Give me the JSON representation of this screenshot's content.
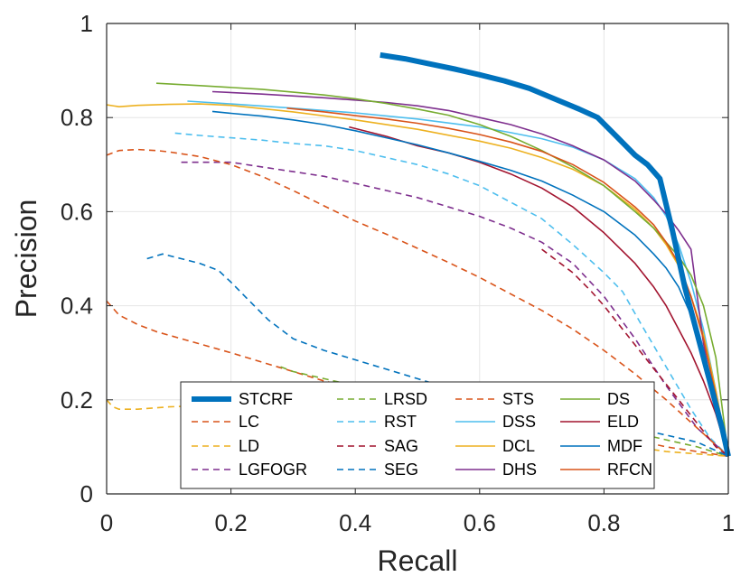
{
  "chart_data": {
    "type": "line",
    "title": "",
    "xlabel": "Recall",
    "ylabel": "Precision",
    "xlim": [
      0,
      1
    ],
    "ylim": [
      0,
      1
    ],
    "xticks": [
      "0",
      "0.2",
      "0.4",
      "0.6",
      "0.8",
      "1"
    ],
    "yticks": [
      "0",
      "0.2",
      "0.4",
      "0.6",
      "0.8",
      "1"
    ],
    "grid": true,
    "legend_position": "bottom",
    "series": [
      {
        "name": "STCRF",
        "color": "#0072BD",
        "style": "thick",
        "x": [
          0.44,
          0.48,
          0.52,
          0.56,
          0.6,
          0.64,
          0.68,
          0.72,
          0.76,
          0.79,
          0.82,
          0.85,
          0.87,
          0.89,
          0.91,
          0.93,
          0.95,
          0.97,
          0.99,
          1.0
        ],
        "y": [
          0.933,
          0.925,
          0.914,
          0.903,
          0.891,
          0.878,
          0.862,
          0.84,
          0.818,
          0.8,
          0.76,
          0.72,
          0.7,
          0.67,
          0.56,
          0.44,
          0.34,
          0.24,
          0.14,
          0.08
        ]
      },
      {
        "name": "LC",
        "color": "#D95319",
        "style": "dashed",
        "x": [
          0.0,
          0.02,
          0.05,
          0.08,
          0.12,
          0.16,
          0.2,
          0.25,
          0.3,
          0.35,
          0.4,
          0.45,
          0.5,
          0.55,
          0.6,
          0.65,
          0.7,
          0.75,
          0.8,
          0.85,
          0.9,
          0.95,
          1.0
        ],
        "y": [
          0.41,
          0.38,
          0.36,
          0.345,
          0.33,
          0.315,
          0.3,
          0.28,
          0.26,
          0.24,
          0.225,
          0.21,
          0.195,
          0.18,
          0.17,
          0.16,
          0.15,
          0.14,
          0.125,
          0.115,
          0.1,
          0.09,
          0.08
        ]
      },
      {
        "name": "LD",
        "color": "#EDB120",
        "style": "dashed",
        "x": [
          0.0,
          0.01,
          0.02,
          0.05,
          0.1,
          0.2,
          0.3,
          0.4,
          0.5,
          0.6,
          0.7,
          0.8,
          0.9,
          1.0
        ],
        "y": [
          0.2,
          0.185,
          0.18,
          0.18,
          0.185,
          0.19,
          0.185,
          0.175,
          0.165,
          0.15,
          0.13,
          0.11,
          0.09,
          0.08
        ]
      },
      {
        "name": "LGFOGR",
        "color": "#7E2F8E",
        "style": "dashed",
        "x": [
          0.12,
          0.15,
          0.2,
          0.25,
          0.3,
          0.35,
          0.4,
          0.45,
          0.5,
          0.55,
          0.6,
          0.65,
          0.7,
          0.75,
          0.8,
          0.85,
          0.9,
          0.95,
          1.0
        ],
        "y": [
          0.705,
          0.705,
          0.705,
          0.695,
          0.685,
          0.675,
          0.66,
          0.645,
          0.63,
          0.61,
          0.59,
          0.565,
          0.535,
          0.49,
          0.42,
          0.33,
          0.23,
          0.14,
          0.08
        ]
      },
      {
        "name": "LRSD",
        "color": "#77AC30",
        "style": "dashed",
        "x": [
          0.28,
          0.3,
          0.35,
          0.4,
          0.45,
          0.5,
          0.55,
          0.6,
          0.65,
          0.7,
          0.75,
          0.8,
          0.85,
          0.9,
          0.95,
          1.0
        ],
        "y": [
          0.27,
          0.26,
          0.245,
          0.23,
          0.215,
          0.205,
          0.195,
          0.185,
          0.175,
          0.165,
          0.155,
          0.145,
          0.13,
          0.115,
          0.1,
          0.08
        ]
      },
      {
        "name": "RST",
        "color": "#4DBEEE",
        "style": "dashed",
        "x": [
          0.11,
          0.15,
          0.2,
          0.25,
          0.3,
          0.35,
          0.4,
          0.45,
          0.5,
          0.55,
          0.6,
          0.65,
          0.7,
          0.75,
          0.8,
          0.83,
          0.86,
          0.9,
          0.94,
          0.97,
          1.0
        ],
        "y": [
          0.767,
          0.762,
          0.757,
          0.752,
          0.745,
          0.74,
          0.73,
          0.715,
          0.7,
          0.68,
          0.655,
          0.62,
          0.585,
          0.53,
          0.47,
          0.43,
          0.36,
          0.27,
          0.18,
          0.12,
          0.08
        ]
      },
      {
        "name": "SAG",
        "color": "#A2142F",
        "style": "dashed",
        "x": [
          0.7,
          0.72,
          0.75,
          0.78,
          0.8,
          0.83,
          0.86,
          0.89,
          0.92,
          0.95,
          0.98,
          1.0
        ],
        "y": [
          0.52,
          0.5,
          0.47,
          0.43,
          0.4,
          0.35,
          0.3,
          0.25,
          0.2,
          0.15,
          0.1,
          0.08
        ]
      },
      {
        "name": "SEG",
        "color": "#0072BD",
        "style": "dashed",
        "x": [
          0.065,
          0.09,
          0.12,
          0.15,
          0.18,
          0.2,
          0.23,
          0.26,
          0.3,
          0.35,
          0.4,
          0.45,
          0.5,
          0.55,
          0.6,
          0.65,
          0.7,
          0.75,
          0.8,
          0.85,
          0.9,
          0.95,
          1.0
        ],
        "y": [
          0.5,
          0.51,
          0.5,
          0.49,
          0.475,
          0.45,
          0.41,
          0.37,
          0.33,
          0.305,
          0.285,
          0.265,
          0.245,
          0.225,
          0.21,
          0.195,
          0.18,
          0.165,
          0.15,
          0.14,
          0.125,
          0.11,
          0.08
        ]
      },
      {
        "name": "STS",
        "color": "#D95319",
        "style": "dashed",
        "x": [
          0.0,
          0.02,
          0.05,
          0.08,
          0.1,
          0.15,
          0.2,
          0.25,
          0.3,
          0.35,
          0.4,
          0.45,
          0.5,
          0.55,
          0.6,
          0.65,
          0.7,
          0.75,
          0.8,
          0.85,
          0.9,
          0.95,
          1.0
        ],
        "y": [
          0.72,
          0.73,
          0.732,
          0.73,
          0.727,
          0.717,
          0.7,
          0.675,
          0.645,
          0.612,
          0.58,
          0.552,
          0.522,
          0.492,
          0.46,
          0.425,
          0.39,
          0.35,
          0.305,
          0.255,
          0.2,
          0.14,
          0.08
        ]
      },
      {
        "name": "DSS",
        "color": "#4DBEEE",
        "style": "solid",
        "x": [
          0.13,
          0.2,
          0.3,
          0.4,
          0.5,
          0.6,
          0.65,
          0.7,
          0.75,
          0.8,
          0.85,
          0.88,
          0.9,
          0.92,
          0.94,
          0.96,
          0.98,
          1.0
        ],
        "y": [
          0.835,
          0.829,
          0.82,
          0.81,
          0.797,
          0.78,
          0.768,
          0.755,
          0.737,
          0.71,
          0.67,
          0.63,
          0.59,
          0.53,
          0.45,
          0.35,
          0.22,
          0.08
        ]
      },
      {
        "name": "DCL",
        "color": "#EDB120",
        "style": "solid",
        "x": [
          0.0,
          0.02,
          0.05,
          0.1,
          0.15,
          0.2,
          0.3,
          0.4,
          0.5,
          0.6,
          0.65,
          0.7,
          0.75,
          0.8,
          0.85,
          0.88,
          0.9,
          0.92,
          0.94,
          0.96,
          0.98,
          1.0
        ],
        "y": [
          0.827,
          0.823,
          0.826,
          0.828,
          0.829,
          0.826,
          0.812,
          0.795,
          0.775,
          0.75,
          0.735,
          0.715,
          0.69,
          0.655,
          0.605,
          0.565,
          0.53,
          0.485,
          0.42,
          0.34,
          0.22,
          0.08
        ]
      },
      {
        "name": "DHS",
        "color": "#7E2F8E",
        "style": "solid",
        "x": [
          0.17,
          0.25,
          0.35,
          0.45,
          0.5,
          0.55,
          0.6,
          0.65,
          0.7,
          0.75,
          0.8,
          0.85,
          0.88,
          0.9,
          0.92,
          0.94,
          0.95,
          0.96,
          0.98,
          1.0
        ],
        "y": [
          0.855,
          0.85,
          0.842,
          0.832,
          0.825,
          0.815,
          0.8,
          0.785,
          0.765,
          0.74,
          0.71,
          0.665,
          0.625,
          0.595,
          0.56,
          0.52,
          0.42,
          0.32,
          0.18,
          0.08
        ]
      },
      {
        "name": "DS",
        "color": "#77AC30",
        "style": "solid",
        "x": [
          0.08,
          0.15,
          0.25,
          0.35,
          0.4,
          0.45,
          0.5,
          0.55,
          0.6,
          0.65,
          0.7,
          0.75,
          0.8,
          0.85,
          0.88,
          0.9,
          0.92,
          0.94,
          0.96,
          0.98,
          1.0
        ],
        "y": [
          0.873,
          0.868,
          0.86,
          0.848,
          0.84,
          0.83,
          0.818,
          0.805,
          0.785,
          0.76,
          0.73,
          0.695,
          0.655,
          0.6,
          0.565,
          0.535,
          0.505,
          0.465,
          0.4,
          0.29,
          0.08
        ]
      },
      {
        "name": "ELD",
        "color": "#A2142F",
        "style": "solid",
        "x": [
          0.39,
          0.45,
          0.5,
          0.55,
          0.6,
          0.65,
          0.7,
          0.75,
          0.8,
          0.85,
          0.88,
          0.9,
          0.92,
          0.94,
          0.96,
          0.98,
          1.0
        ],
        "y": [
          0.78,
          0.76,
          0.74,
          0.725,
          0.705,
          0.68,
          0.65,
          0.61,
          0.555,
          0.49,
          0.44,
          0.4,
          0.35,
          0.3,
          0.24,
          0.17,
          0.08
        ]
      },
      {
        "name": "MDF",
        "color": "#0072BD",
        "style": "solid",
        "x": [
          0.17,
          0.2,
          0.25,
          0.3,
          0.35,
          0.4,
          0.45,
          0.5,
          0.55,
          0.6,
          0.65,
          0.7,
          0.75,
          0.8,
          0.85,
          0.88,
          0.9,
          0.92,
          0.94,
          0.96,
          0.98,
          1.0
        ],
        "y": [
          0.813,
          0.809,
          0.803,
          0.795,
          0.785,
          0.772,
          0.757,
          0.742,
          0.725,
          0.707,
          0.688,
          0.665,
          0.635,
          0.6,
          0.55,
          0.51,
          0.48,
          0.44,
          0.38,
          0.3,
          0.19,
          0.08
        ]
      },
      {
        "name": "RFCN",
        "color": "#D95319",
        "style": "solid",
        "x": [
          0.29,
          0.35,
          0.4,
          0.45,
          0.5,
          0.55,
          0.6,
          0.65,
          0.7,
          0.75,
          0.8,
          0.85,
          0.88,
          0.9,
          0.92,
          0.94,
          0.96,
          0.98,
          1.0
        ],
        "y": [
          0.82,
          0.812,
          0.804,
          0.797,
          0.788,
          0.777,
          0.764,
          0.748,
          0.728,
          0.7,
          0.662,
          0.61,
          0.572,
          0.535,
          0.49,
          0.42,
          0.33,
          0.21,
          0.08
        ]
      }
    ]
  }
}
